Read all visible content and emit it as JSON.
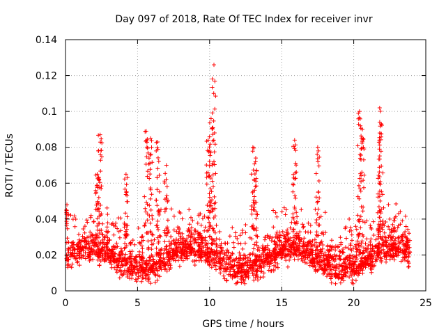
{
  "chart_data": {
    "type": "scatter",
    "title": "Day 097 of 2018, Rate Of TEC Index for receiver invr",
    "xlabel": "GPS time / hours",
    "ylabel": "ROTI / TECUs",
    "xlim": [
      0,
      25
    ],
    "ylim": [
      0,
      0.14
    ],
    "xticks": [
      0,
      5,
      10,
      15,
      20,
      25
    ],
    "yticks": [
      0,
      0.02,
      0.04,
      0.06,
      0.08,
      0.1,
      0.12,
      0.14
    ],
    "xtick_labels": [
      "0",
      "5",
      "10",
      "15",
      "20",
      "25"
    ],
    "ytick_labels": [
      "0",
      "0.02",
      "0.04",
      "0.06",
      "0.08",
      "0.1",
      "0.12",
      "0.14"
    ],
    "grid": true,
    "marker": "+",
    "color": "#ff0000",
    "data_x_range": [
      0,
      23.9
    ],
    "series": [
      {
        "name": "ROTI",
        "note": "dense band of points roughly 0.005-0.045 TECU across the day; peaks listed below",
        "peaks": [
          {
            "x": 0.1,
            "y": 0.048
          },
          {
            "x": 2.4,
            "y": 0.087
          },
          {
            "x": 2.2,
            "y": 0.065
          },
          {
            "x": 4.2,
            "y": 0.065
          },
          {
            "x": 5.6,
            "y": 0.089
          },
          {
            "x": 5.9,
            "y": 0.085
          },
          {
            "x": 6.4,
            "y": 0.083
          },
          {
            "x": 7.0,
            "y": 0.07
          },
          {
            "x": 9.9,
            "y": 0.084
          },
          {
            "x": 10.1,
            "y": 0.096
          },
          {
            "x": 10.3,
            "y": 0.126
          },
          {
            "x": 13.0,
            "y": 0.08
          },
          {
            "x": 13.2,
            "y": 0.074
          },
          {
            "x": 15.9,
            "y": 0.084
          },
          {
            "x": 17.5,
            "y": 0.08
          },
          {
            "x": 20.4,
            "y": 0.1
          },
          {
            "x": 20.6,
            "y": 0.09
          },
          {
            "x": 21.8,
            "y": 0.102
          },
          {
            "x": 21.9,
            "y": 0.093
          }
        ]
      }
    ]
  }
}
